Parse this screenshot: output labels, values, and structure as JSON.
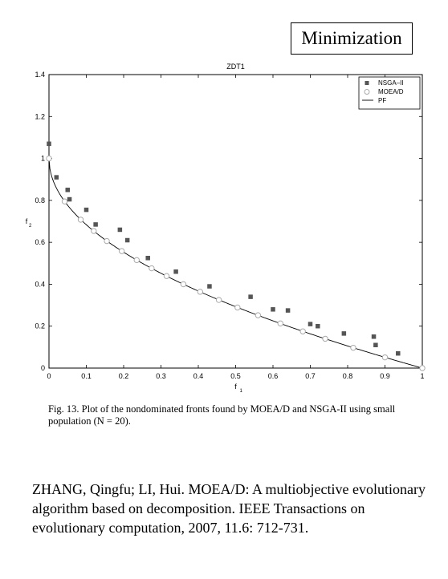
{
  "badge": "Minimization",
  "chart_data": {
    "type": "scatter",
    "title": "ZDT1",
    "xlabel": "f",
    "xlabel_sub": "1",
    "ylabel": "f",
    "ylabel_sub": "2",
    "xlim": [
      0,
      1
    ],
    "ylim": [
      0,
      1.4
    ],
    "xticks": [
      0,
      0.1,
      0.2,
      0.3,
      0.4,
      0.5,
      0.6,
      0.7,
      0.8,
      0.9,
      1
    ],
    "xtick_labels": [
      "0",
      "0.1",
      "0.2",
      "0.3",
      "0.4",
      "0.5",
      "0.6",
      "0.7",
      "0.8",
      "0.9",
      "1"
    ],
    "yticks": [
      0,
      0.2,
      0.4,
      0.6,
      0.8,
      1,
      1.2,
      1.4
    ],
    "ytick_labels": [
      "0",
      "0.2",
      "0.4",
      "0.6",
      "0.8",
      "1",
      "1.2",
      "1.4"
    ],
    "grid": false,
    "legend_position": "top-right",
    "series": [
      {
        "name": "NSGA–II",
        "marker": "square",
        "color": "#555555",
        "x": [
          0.0,
          0.02,
          0.05,
          0.055,
          0.1,
          0.125,
          0.19,
          0.21,
          0.265,
          0.34,
          0.43,
          0.54,
          0.6,
          0.64,
          0.7,
          0.72,
          0.79,
          0.87,
          0.875,
          0.935
        ],
        "y": [
          1.07,
          0.91,
          0.85,
          0.805,
          0.755,
          0.685,
          0.66,
          0.61,
          0.525,
          0.46,
          0.39,
          0.34,
          0.28,
          0.275,
          0.21,
          0.2,
          0.165,
          0.15,
          0.11,
          0.07
        ]
      },
      {
        "name": "MOEA/D",
        "marker": "circle",
        "color": "#aaaaaa",
        "x": [
          0.0,
          0.042,
          0.085,
          0.12,
          0.155,
          0.195,
          0.235,
          0.275,
          0.315,
          0.36,
          0.405,
          0.455,
          0.505,
          0.56,
          0.62,
          0.68,
          0.74,
          0.815,
          0.9,
          1.0
        ],
        "y": [
          1.0,
          0.795,
          0.708,
          0.654,
          0.606,
          0.558,
          0.515,
          0.476,
          0.439,
          0.4,
          0.364,
          0.325,
          0.289,
          0.252,
          0.213,
          0.175,
          0.14,
          0.097,
          0.051,
          0.0
        ]
      },
      {
        "name": "PF",
        "marker": "line",
        "color": "#000000",
        "function": "1 - sqrt(f1)"
      }
    ]
  },
  "caption": "Fig. 13.  Plot of the nondominated fronts found by MOEA/D and NSGA-II using small population (N = 20).",
  "citation": "ZHANG, Qingfu; LI, Hui. MOEA/D: A multiobjective evolutionary algorithm based on decomposition. IEEE Transactions on evolutionary computation, 2007, 11.6: 712-731."
}
